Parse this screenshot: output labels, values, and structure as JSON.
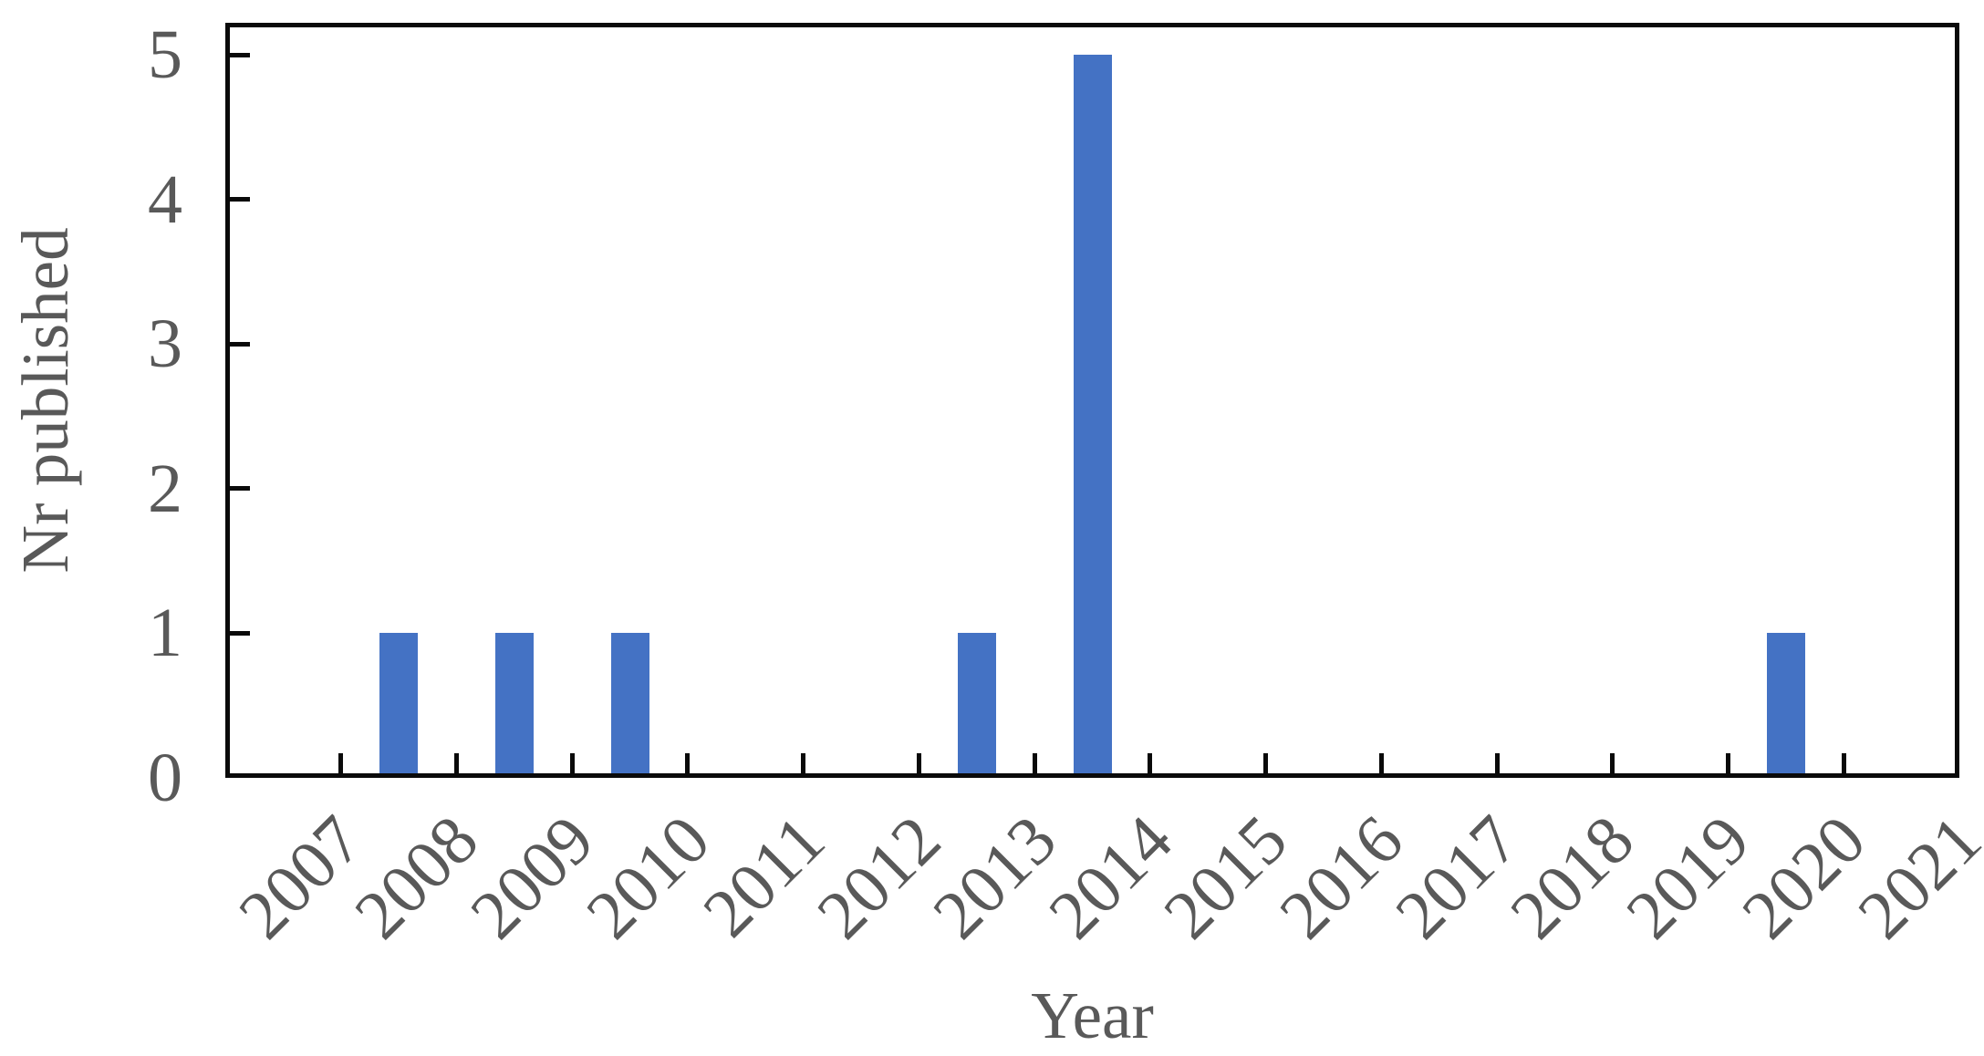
{
  "chart_data": {
    "type": "bar",
    "categories": [
      "2007",
      "2008",
      "2009",
      "2010",
      "2011",
      "2012",
      "2013",
      "2014",
      "2015",
      "2016",
      "2017",
      "2018",
      "2019",
      "2020",
      "2021"
    ],
    "values": [
      0,
      1,
      1,
      1,
      0,
      0,
      1,
      5,
      0,
      0,
      0,
      0,
      0,
      1,
      0
    ],
    "title": "",
    "xlabel": "Year",
    "ylabel": "Nr published",
    "ylim": [
      0,
      5
    ],
    "yticks": [
      0,
      1,
      2,
      3,
      4,
      5
    ],
    "x_tick_rotation_deg": -45,
    "grid": false,
    "legend": "none",
    "tick_style": "inside",
    "bar_color": "#4472C4",
    "axis_color": "#0a0a0a",
    "label_color": "#595959"
  }
}
